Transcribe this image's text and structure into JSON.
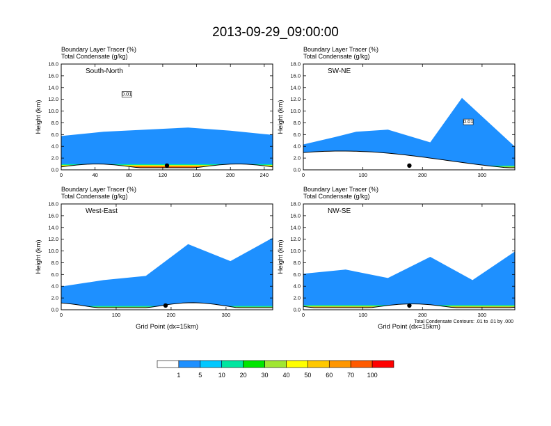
{
  "figure": {
    "title": "2013-09-29_09:00:00",
    "footnote": "Total Condensate Contours: .01 to .01 by .000"
  },
  "colorbar": {
    "labels": [
      "1",
      "5",
      "10",
      "20",
      "30",
      "40",
      "50",
      "60",
      "70",
      "100"
    ],
    "colors": [
      "#ffffff",
      "#1e90ff",
      "#00c8ff",
      "#00e6a0",
      "#00e600",
      "#a0e632",
      "#ffff00",
      "#ffc800",
      "#ff9600",
      "#ff5a00",
      "#ff0000"
    ]
  },
  "chart_data": [
    {
      "type": "heatmap",
      "panel_label": "South-North",
      "header_lines": [
        "Boundary Layer Tracer   (%)",
        "Total Condensate   (g/kg)"
      ],
      "ylabel": "Height (km)",
      "xlabel": "",
      "xlim": [
        0,
        250
      ],
      "ylim": [
        0,
        18
      ],
      "xticks": [
        "0",
        "40",
        "80",
        "120",
        "160",
        "200",
        "240"
      ],
      "yticks": [
        "0.0",
        "2.0",
        "4.0",
        "6.0",
        "8.0",
        "10.0",
        "12.0",
        "14.0",
        "16.0",
        "18.0"
      ],
      "contour_label": "0.01",
      "marker_x": 125,
      "terrain_top_km": 1.0
    },
    {
      "type": "heatmap",
      "panel_label": "SW-NE",
      "header_lines": [
        "Boundary Layer Tracer   (%)",
        "Total Condensate   (g/kg)"
      ],
      "ylabel": "Height (km)",
      "xlabel": "",
      "xlim": [
        0,
        355
      ],
      "ylim": [
        0,
        18
      ],
      "xticks": [
        "0",
        "100",
        "200",
        "300"
      ],
      "yticks": [
        "0.0",
        "2.0",
        "4.0",
        "6.0",
        "8.0",
        "10.0",
        "12.0",
        "14.0",
        "16.0",
        "18.0"
      ],
      "contour_label": "0.01",
      "marker_x": 178,
      "terrain_top_km": 3.2
    },
    {
      "type": "heatmap",
      "panel_label": "West-East",
      "header_lines": [
        "Boundary Layer Tracer   (%)",
        "Total Condensate   (g/kg)"
      ],
      "ylabel": "Height (km)",
      "xlabel": "Grid Point (dx=15km)",
      "xlim": [
        0,
        385
      ],
      "ylim": [
        0,
        18
      ],
      "xticks": [
        "0",
        "100",
        "200",
        "300"
      ],
      "yticks": [
        "0.0",
        "2.0",
        "4.0",
        "6.0",
        "8.0",
        "10.0",
        "12.0",
        "14.0",
        "16.0",
        "18.0"
      ],
      "marker_x": 190,
      "terrain_top_km": 1.2
    },
    {
      "type": "heatmap",
      "panel_label": "NW-SE",
      "header_lines": [
        "Boundary Layer Tracer   (%)",
        "Total Condensate   (g/kg)"
      ],
      "ylabel": "Height (km)",
      "xlabel": "Grid Point (dx=15km)",
      "xlim": [
        0,
        355
      ],
      "ylim": [
        0,
        18
      ],
      "xticks": [
        "0",
        "100",
        "200",
        "300"
      ],
      "yticks": [
        "0.0",
        "2.0",
        "4.0",
        "6.0",
        "8.0",
        "10.0",
        "12.0",
        "14.0",
        "16.0",
        "18.0"
      ],
      "marker_x": 178,
      "terrain_top_km": 1.0
    }
  ]
}
